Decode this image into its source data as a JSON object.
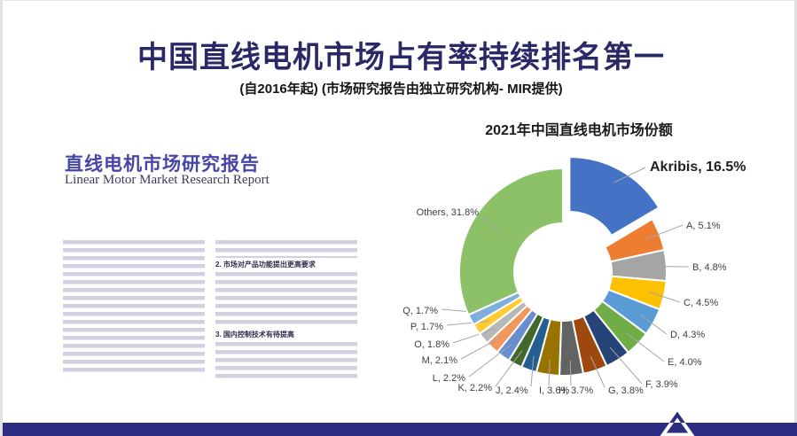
{
  "slide": {
    "title": "中国直线电机市场占有率持续排名第一",
    "subtitle": "(自2016年起) (市场研究报告由独立研究机构- MIR提供)"
  },
  "document": {
    "title": "直线电机市场研究报告",
    "subtitle_en": "Linear Motor Market Research Report",
    "section_headers": [
      "2. 市场对产品功能提出更高要求",
      "3. 国内控制技术有待提高"
    ]
  },
  "chart_data": {
    "type": "pie",
    "donut": true,
    "title": "2021年中国直线电机市场份额",
    "unit": "%",
    "exploded_slice": "Akribis",
    "emphasized_slice": "Akribis",
    "leader_lines": true,
    "slices": [
      {
        "name": "Akribis",
        "value": 16.5,
        "color": "#4472C4"
      },
      {
        "name": "A",
        "value": 5.1,
        "color": "#ED7D31"
      },
      {
        "name": "B",
        "value": 4.8,
        "color": "#A5A5A5"
      },
      {
        "name": "C",
        "value": 4.5,
        "color": "#FFC000"
      },
      {
        "name": "D",
        "value": 4.3,
        "color": "#5B9BD5"
      },
      {
        "name": "E",
        "value": 4.0,
        "color": "#70AD47"
      },
      {
        "name": "F",
        "value": 3.9,
        "color": "#264478"
      },
      {
        "name": "G",
        "value": 3.8,
        "color": "#9E480E"
      },
      {
        "name": "H",
        "value": 3.7,
        "color": "#636363"
      },
      {
        "name": "I",
        "value": 3.6,
        "color": "#997300"
      },
      {
        "name": "J",
        "value": 2.4,
        "color": "#255E91"
      },
      {
        "name": "K",
        "value": 2.2,
        "color": "#43682B"
      },
      {
        "name": "L",
        "value": 2.2,
        "color": "#698ED0"
      },
      {
        "name": "M",
        "value": 2.1,
        "color": "#F1975A"
      },
      {
        "name": "O",
        "value": 1.8,
        "color": "#B7B7B7"
      },
      {
        "name": "P",
        "value": 1.7,
        "color": "#FFCD33"
      },
      {
        "name": "Q",
        "value": 1.7,
        "color": "#7CAFDD"
      },
      {
        "name": "Others",
        "value": 31.8,
        "color": "#8CC168"
      }
    ]
  },
  "footer": {
    "logo": "akribis-triangle-logo"
  },
  "theme": {
    "brand_navy": "#292968",
    "footer_bar": "#2B2E80",
    "doc_title_blue": "#4646A8"
  }
}
